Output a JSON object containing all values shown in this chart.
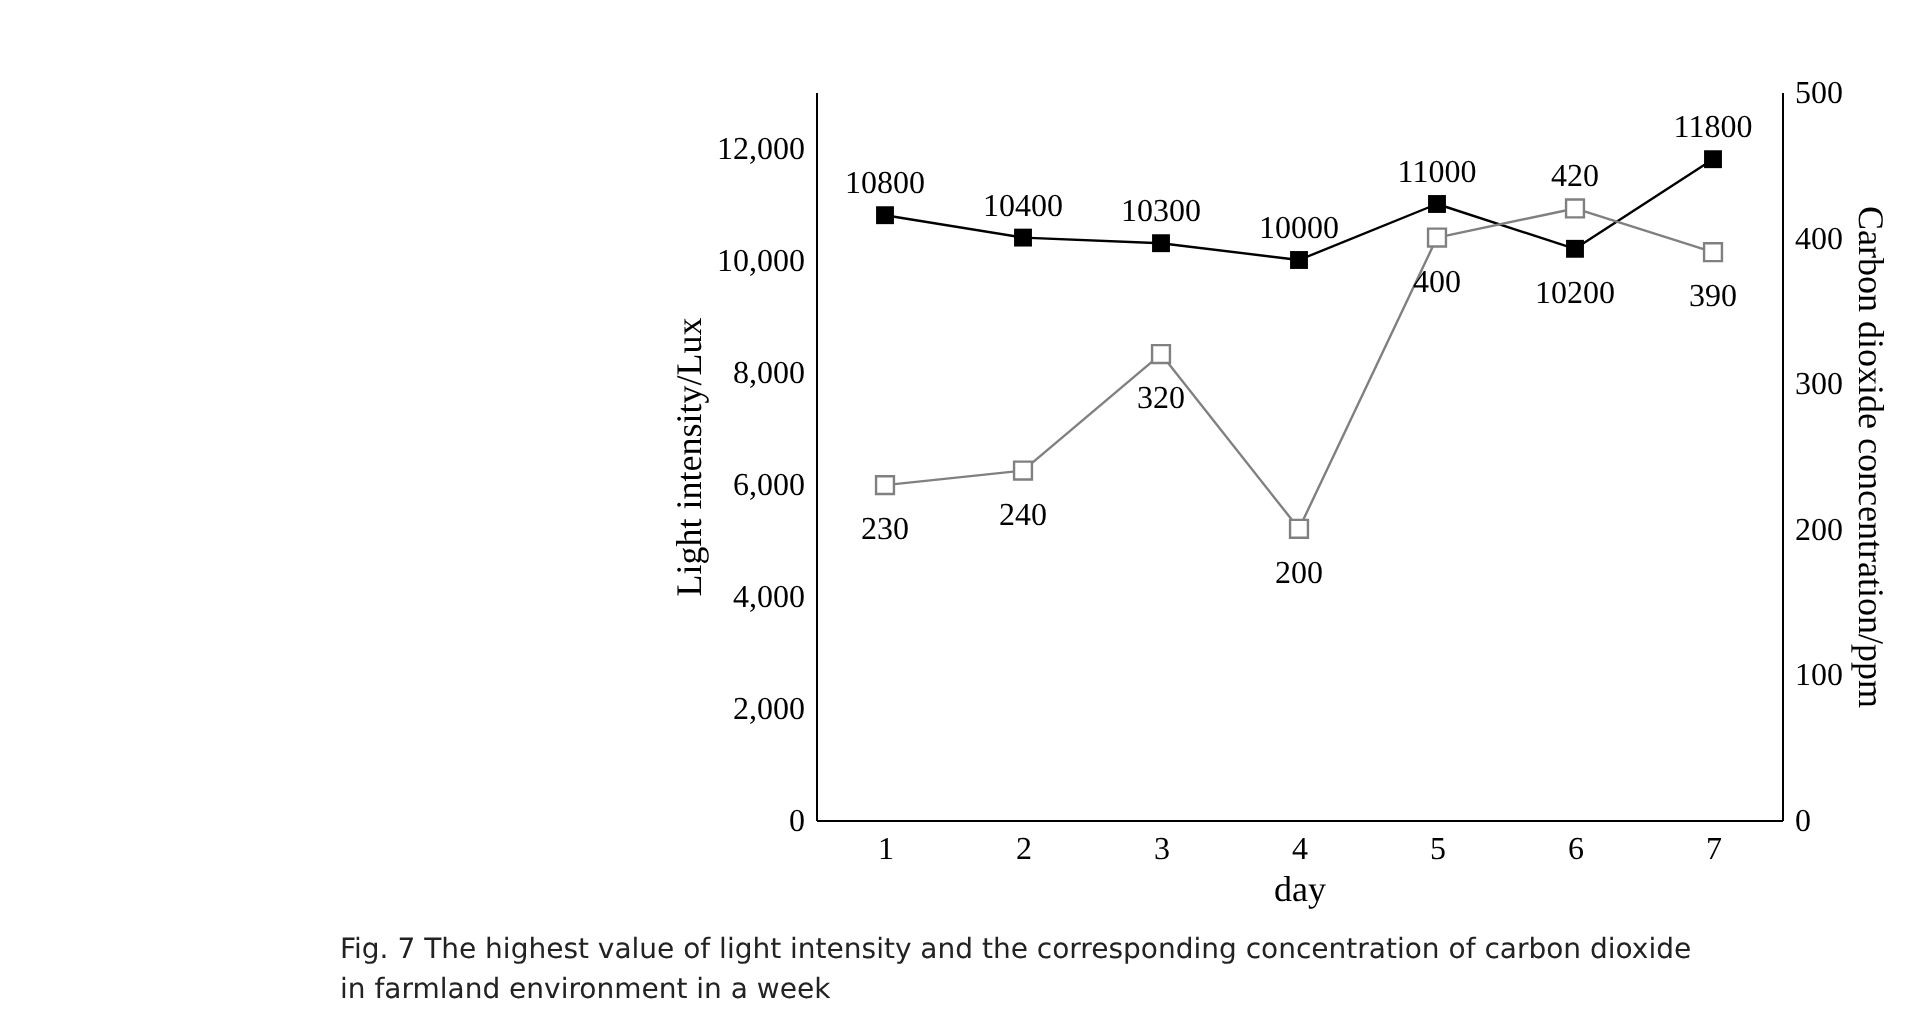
{
  "chart_data": {
    "type": "line",
    "xlabel": "day",
    "ylabel": "Light intensity/Lux",
    "y2label": "Carbon dioxide concentration/ppm",
    "categories": [
      "1",
      "2",
      "3",
      "4",
      "5",
      "6",
      "7"
    ],
    "series": [
      {
        "color": "#000000",
        "marker": "square",
        "values": [
          10800,
          10400,
          10300,
          10000,
          11000,
          10200,
          11800
        ]
      },
      {
        "color": "#808080",
        "marker": "square",
        "axis": "y2",
        "values": [
          230,
          240,
          320,
          200,
          400,
          420,
          390
        ]
      }
    ],
    "ylim": [
      0,
      13000
    ],
    "yticks": [
      {
        "value": 0,
        "label": "0"
      },
      {
        "value": 2000,
        "label": "2,000"
      },
      {
        "value": 4000,
        "label": "4,000"
      },
      {
        "value": 6000,
        "label": "6,000"
      },
      {
        "value": 8000,
        "label": "8,000"
      },
      {
        "value": 10000,
        "label": "10,000"
      },
      {
        "value": 12000,
        "label": "12,000"
      }
    ],
    "y2lim": [
      0,
      500
    ],
    "y2ticks": [
      0,
      100,
      200,
      300,
      400,
      500
    ],
    "data_labels": true,
    "grid": false,
    "line_style": "solid",
    "annotations": [
      "Fig. 7  The highest value of light intensity and the corresponding concentration of carbon dioxide in farmland environment in a week"
    ]
  }
}
